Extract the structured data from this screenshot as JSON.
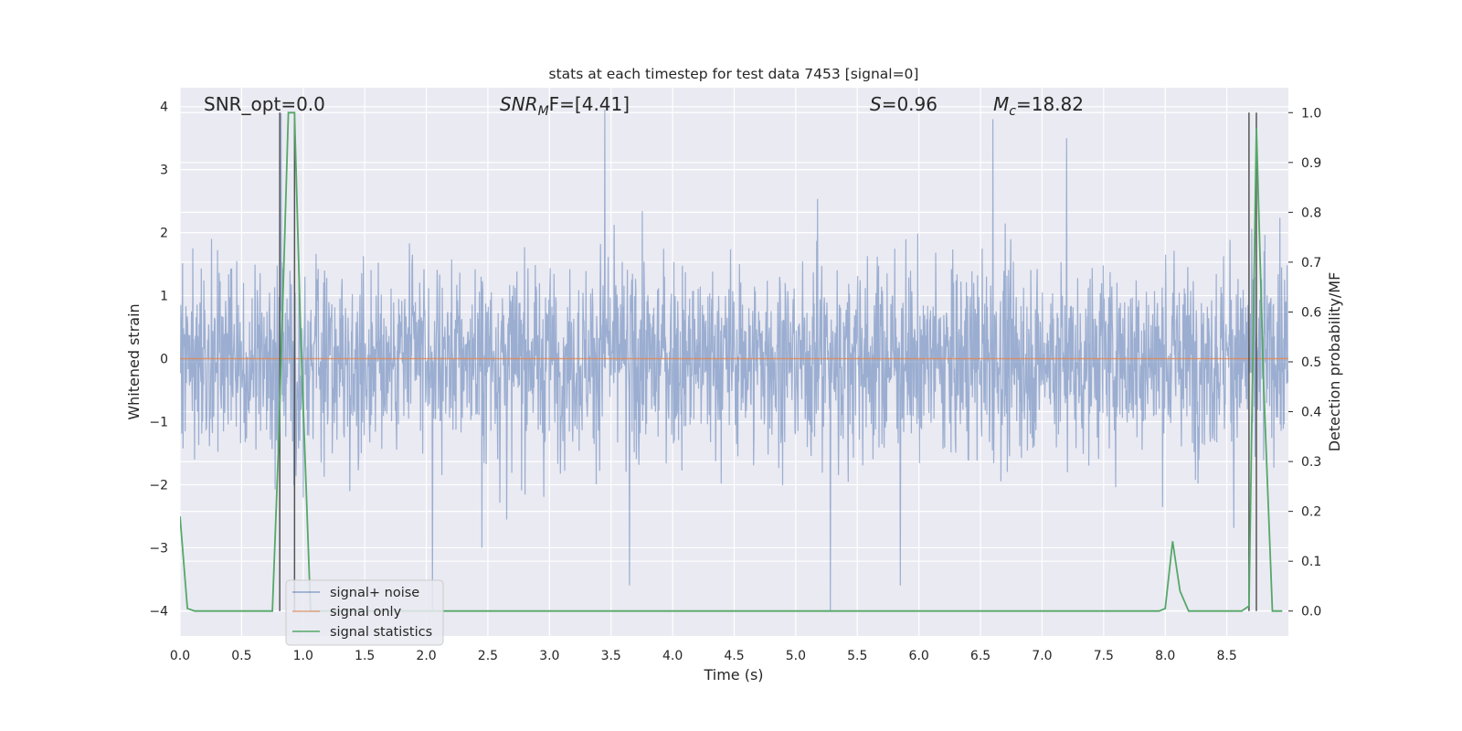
{
  "chart_data": {
    "type": "line",
    "title": "stats at each timestep for test data 7453 [signal=0]",
    "xlabel": "Time (s)",
    "ylabel_left": "Whitened strain",
    "ylabel_right": "Detection probability/MF",
    "xlim": [
      0.0,
      9.0
    ],
    "ylim_left": [
      -4.4,
      4.3
    ],
    "ylim_right": [
      -0.05,
      1.05
    ],
    "grid": true,
    "background": "#eaeaf2",
    "x_ticks": [
      "0.0",
      "0.5",
      "1.0",
      "1.5",
      "2.0",
      "2.5",
      "3.0",
      "3.5",
      "4.0",
      "4.5",
      "5.0",
      "5.5",
      "6.0",
      "6.5",
      "7.0",
      "7.5",
      "8.0",
      "8.5"
    ],
    "x_tick_values": [
      0.0,
      0.5,
      1.0,
      1.5,
      2.0,
      2.5,
      3.0,
      3.5,
      4.0,
      4.5,
      5.0,
      5.5,
      6.0,
      6.5,
      7.0,
      7.5,
      8.0,
      8.5
    ],
    "y_left_ticks": [
      "−4",
      "−3",
      "−2",
      "−1",
      "0",
      "1",
      "2",
      "3",
      "4"
    ],
    "y_left_tick_values": [
      -4,
      -3,
      -2,
      -1,
      0,
      1,
      2,
      3,
      4
    ],
    "y_right_ticks": [
      "0.0",
      "0.1",
      "0.2",
      "0.3",
      "0.4",
      "0.5",
      "0.6",
      "0.7",
      "0.8",
      "0.9",
      "1.0"
    ],
    "y_right_tick_values": [
      0.0,
      0.1,
      0.2,
      0.3,
      0.4,
      0.5,
      0.6,
      0.7,
      0.8,
      0.9,
      1.0
    ],
    "annotations": {
      "snr_opt": "SNR_opt=0.0",
      "snr_mf_prefix": "SNR",
      "snr_mf_sub": "M",
      "snr_mf_rest": "F=[4.41]",
      "s_prefix": "S",
      "s_rest": "=0.96",
      "mc_prefix": "M",
      "mc_sub": "c",
      "mc_rest": "=18.82"
    },
    "legend": {
      "placement": "lower-left",
      "entries": [
        "signal+ noise",
        "signal only",
        "signal statistics"
      ]
    },
    "series": [
      {
        "name": "signal+ noise",
        "axis": "left",
        "color": "#4c72b0",
        "alpha": 0.5,
        "kind": "noise",
        "x_range": [
          0.0,
          9.0
        ],
        "envelope_typical": [
          -1.6,
          2.2
        ],
        "extreme_peaks": [
          {
            "x": 0.82,
            "y": 3.9
          },
          {
            "x": 2.45,
            "y": -3.0
          },
          {
            "x": 3.45,
            "y": 3.95
          },
          {
            "x": 3.65,
            "y": -3.6
          },
          {
            "x": 5.28,
            "y": -4.0
          },
          {
            "x": 5.85,
            "y": -3.6
          },
          {
            "x": 6.6,
            "y": 3.8
          },
          {
            "x": 7.2,
            "y": 3.5
          },
          {
            "x": 2.05,
            "y": -4.0
          }
        ]
      },
      {
        "name": "signal only",
        "axis": "left",
        "color": "#dd8452",
        "x": [
          0.0,
          9.0
        ],
        "y": [
          0.0,
          0.0
        ]
      },
      {
        "name": "signal statistics",
        "axis": "right",
        "color": "#55a868",
        "x": [
          0.0,
          0.06,
          0.12,
          0.75,
          0.8,
          0.88,
          0.93,
          0.98,
          1.06,
          1.12,
          1.2,
          7.95,
          8.0,
          8.06,
          8.12,
          8.19,
          8.62,
          8.68,
          8.74,
          8.8,
          8.87,
          8.95
        ],
        "y": [
          0.19,
          0.005,
          0.0,
          0.0,
          0.33,
          1.0,
          1.0,
          0.55,
          0.0,
          0.0,
          0.0,
          0.0,
          0.005,
          0.14,
          0.04,
          0.0,
          0.0,
          0.01,
          0.97,
          0.45,
          0.0,
          0.0
        ]
      }
    ],
    "vertical_markers": {
      "color": "#555555",
      "x": [
        0.81,
        0.93,
        8.68,
        8.74
      ]
    }
  }
}
